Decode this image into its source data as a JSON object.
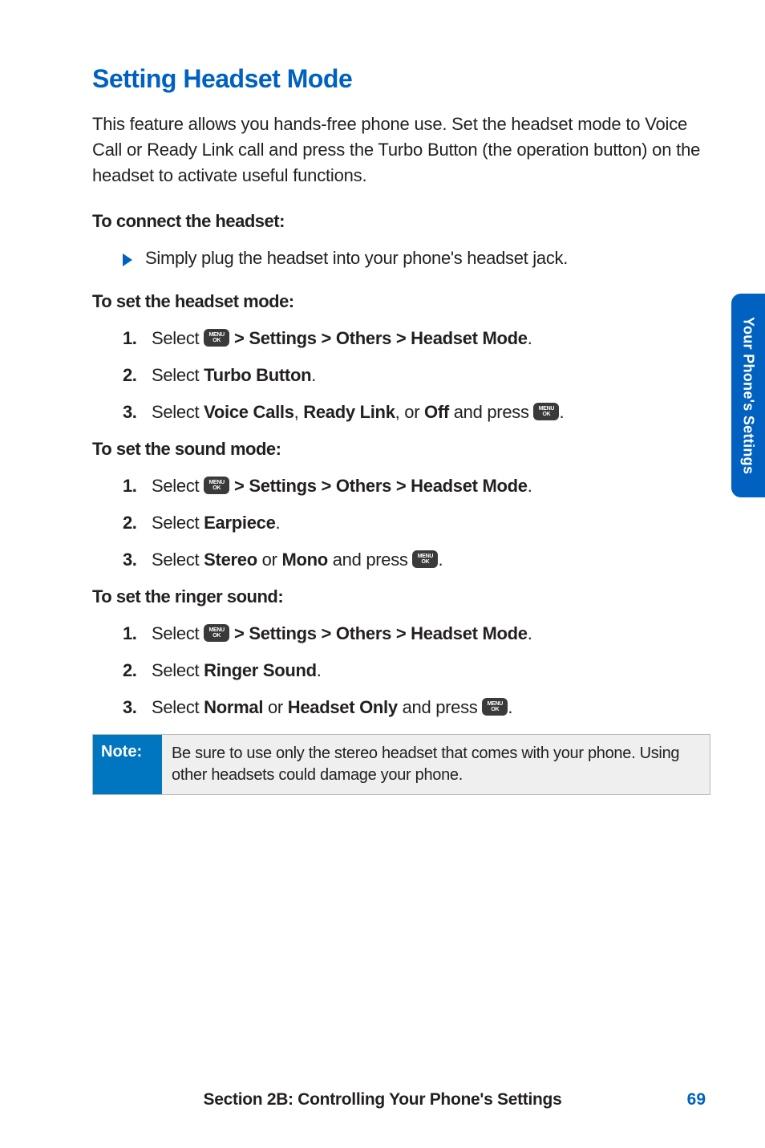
{
  "colors": {
    "title": "#0061c1",
    "body": "#231f20",
    "tab_bg": "#0061c0",
    "note_bg": "#0076c0",
    "note_body_bg": "#eeefee",
    "note_border": "#b9b9b9",
    "menu_btn_bg": "#3a3a3a",
    "triangle": "#0061c1",
    "footer": "#231f20",
    "page_num": "#0061c1"
  },
  "title": "Setting Headset Mode",
  "intro": "This feature allows you hands-free phone use. Set the headset mode to Voice Call or Ready Link call and press the Turbo Button (the operation button) on the headset to activate useful functions.",
  "menu_label_top": "MENU",
  "menu_label_bot": "OK",
  "connect": {
    "heading": "To connect the headset:",
    "bullet": "Simply plug the headset into your phone's headset jack."
  },
  "headset_mode": {
    "heading": "To set the headset mode:",
    "steps": {
      "s1_prefix": "Select ",
      "s1_path": " > Settings > Others > Headset Mode",
      "s2_prefix": "Select ",
      "s2_item": "Turbo Button",
      "s3_prefix": "Select ",
      "s3_a": "Voice Calls",
      "s3_sep1": ", ",
      "s3_b": "Ready Link",
      "s3_sep2": ", or ",
      "s3_c": "Off",
      "s3_tail": " and press "
    }
  },
  "sound_mode": {
    "heading": "To set the sound mode:",
    "steps": {
      "s1_prefix": "Select ",
      "s1_path": " > Settings > Others > Headset Mode",
      "s2_prefix": "Select ",
      "s2_item": "Earpiece",
      "s3_prefix": "Select ",
      "s3_a": "Stereo",
      "s3_sep": " or ",
      "s3_b": "Mono",
      "s3_tail": " and press "
    }
  },
  "ringer": {
    "heading": "To set the ringer sound:",
    "steps": {
      "s1_prefix": "Select ",
      "s1_path": " > Settings > Others > Headset Mode",
      "s2_prefix": "Select ",
      "s2_item": "Ringer Sound",
      "s3_prefix": "Select ",
      "s3_a": "Normal",
      "s3_sep": " or ",
      "s3_b": "Headset Only",
      "s3_tail": " and press "
    }
  },
  "note": {
    "label": "Note:",
    "body": "Be sure to use only the stereo headset that comes with your phone. Using other headsets could damage your phone."
  },
  "side_tab": "Your Phone's Settings",
  "footer": {
    "text": "Section 2B: Controlling Your Phone's Settings",
    "page": "69"
  },
  "nums": {
    "n1": "1.",
    "n2": "2.",
    "n3": "3."
  },
  "period": "."
}
